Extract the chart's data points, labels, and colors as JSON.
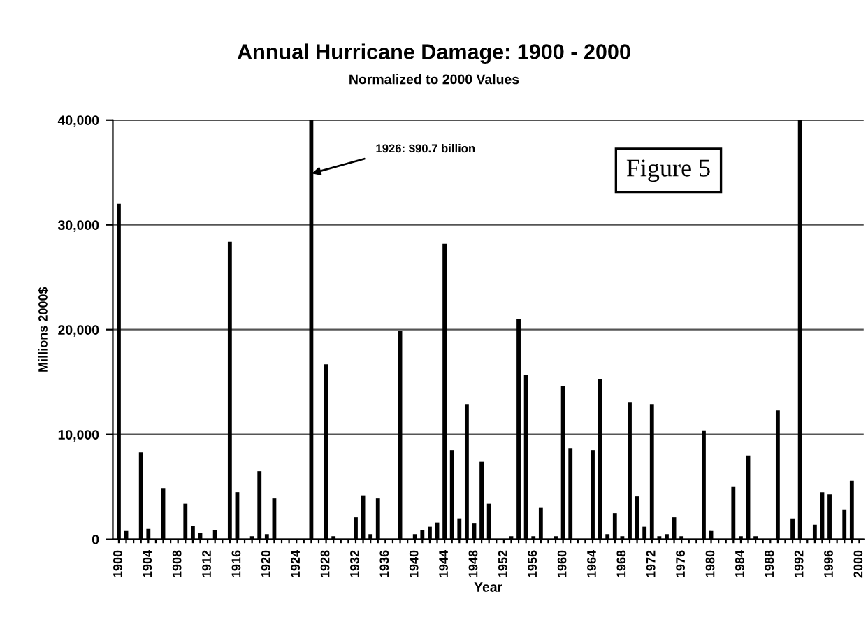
{
  "chart_data": {
    "type": "bar",
    "title": "Annual Hurricane Damage: 1900 - 2000",
    "subtitle": "Normalized to 2000 Values",
    "xlabel": "Year",
    "ylabel": "Millions 2000$",
    "categories": [
      "1900",
      null,
      null,
      null,
      "1904",
      null,
      null,
      null,
      "1908",
      null,
      null,
      null,
      "1912",
      null,
      null,
      null,
      "1916",
      null,
      null,
      null,
      "1920",
      null,
      null,
      null,
      "1924",
      null,
      null,
      null,
      "1928",
      null,
      null,
      null,
      "1932",
      null,
      null,
      null,
      "1936",
      null,
      null,
      null,
      "1940",
      null,
      null,
      null,
      "1944",
      null,
      null,
      null,
      "1948",
      null,
      null,
      null,
      "1952",
      null,
      null,
      null,
      "1956",
      null,
      null,
      null,
      "1960",
      null,
      null,
      null,
      "1964",
      null,
      null,
      null,
      "1968",
      null,
      null,
      null,
      "1972",
      null,
      null,
      null,
      "1976",
      null,
      null,
      null,
      "1980",
      null,
      null,
      null,
      "1984",
      null,
      null,
      null,
      "1988",
      null,
      null,
      null,
      "1992",
      null,
      null,
      null,
      "1996",
      null,
      null,
      null,
      "2000"
    ],
    "values": [
      32000,
      800,
      0,
      8300,
      1000,
      0,
      4900,
      0,
      0,
      3400,
      1300,
      600,
      0,
      900,
      0,
      28400,
      4500,
      0,
      300,
      6500,
      500,
      3900,
      0,
      0,
      0,
      0,
      40000,
      0,
      16700,
      300,
      0,
      0,
      2100,
      4200,
      500,
      3900,
      0,
      0,
      19900,
      0,
      500,
      900,
      1200,
      1600,
      28200,
      8500,
      2000,
      12900,
      1500,
      7400,
      3400,
      0,
      0,
      300,
      21000,
      15700,
      300,
      3000,
      0,
      300,
      14600,
      8700,
      0,
      0,
      8500,
      15300,
      500,
      2500,
      300,
      13100,
      4100,
      1200,
      12900,
      300,
      500,
      2100,
      300,
      0,
      0,
      10400,
      800,
      0,
      0,
      5000,
      300,
      8000,
      300,
      0,
      0,
      12300,
      0,
      2000,
      40000,
      0,
      1400,
      4500,
      4300,
      0,
      2800,
      5600,
      0
    ],
    "color": "#000000",
    "ylim": [
      0,
      40000
    ],
    "yticks": [
      0,
      {
        "value": 10000,
        "label": "10,000"
      },
      {
        "value": 20000,
        "label": "20,000"
      },
      {
        "value": 30000,
        "label": "30,000"
      },
      {
        "value": 40000,
        "label": "40,000"
      }
    ],
    "grid": "y",
    "annotations": [
      "1926: $90.7 billion",
      "Figure 5"
    ]
  }
}
